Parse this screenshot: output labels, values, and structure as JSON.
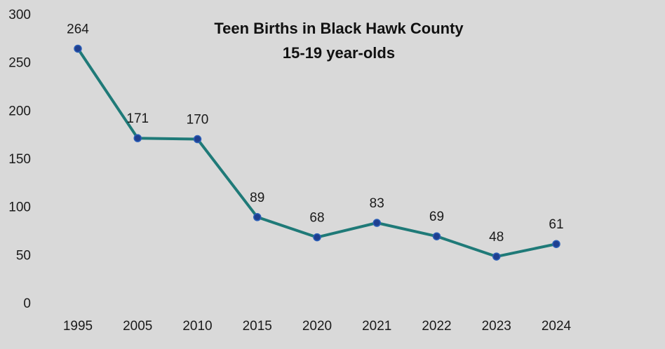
{
  "chart_data": {
    "type": "line",
    "title": "Teen Births in Black Hawk County",
    "subtitle": "15-19 year-olds",
    "xlabel": "",
    "ylabel": "",
    "categories": [
      "1995",
      "2005",
      "2010",
      "2015",
      "2020",
      "2021",
      "2022",
      "2023",
      "2024"
    ],
    "series": [
      {
        "values": [
          264,
          171,
          170,
          89,
          68,
          83,
          69,
          48,
          61
        ]
      }
    ],
    "ylim": [
      0,
      300
    ],
    "yticks": [
      "0",
      "50",
      "100",
      "150",
      "200",
      "250",
      "300"
    ],
    "data_labels": true,
    "grid": false,
    "legend": "none",
    "colors": {
      "background": "#d9d9d9",
      "line": "#1f7a78",
      "marker": "#1f3f8f",
      "marker_edge": "#2b5fb8"
    }
  }
}
